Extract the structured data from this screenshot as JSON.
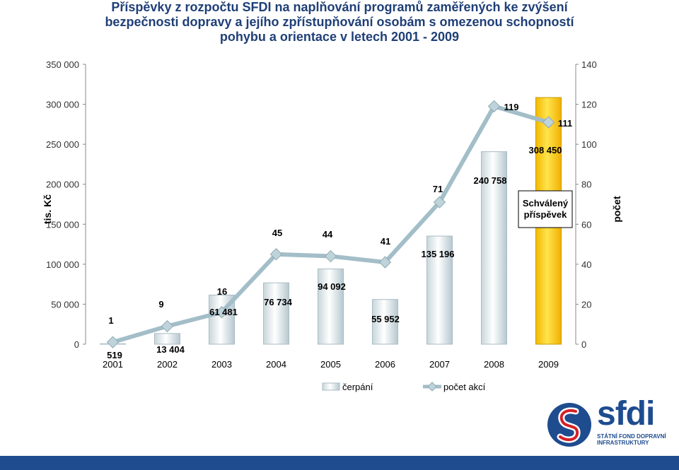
{
  "title_lines": [
    "Příspěvky z rozpočtu SFDI na naplňování programů zaměřených ke zvýšení",
    "bezpečnosti dopravy a jejího zpřístupňování osobám s omezenou schopností",
    "pohybu a orientace v letech 2001 - 2009"
  ],
  "chart_data": {
    "type": "bar+line",
    "categories": [
      "2001",
      "2002",
      "2003",
      "2004",
      "2005",
      "2006",
      "2007",
      "2008",
      "2009"
    ],
    "series": [
      {
        "name": "čerpání",
        "type": "bar",
        "axis": "left",
        "values": [
          519,
          13404,
          61481,
          76734,
          94092,
          55952,
          135196,
          240758,
          308450
        ],
        "labels": [
          "519",
          "13 404",
          "61 481",
          "76 734",
          "94 092",
          "55 952",
          "135 196",
          "240 758",
          "308 450"
        ],
        "highlight_index": 8,
        "highlight_color": "#FFD400"
      },
      {
        "name": "počet akcí",
        "type": "line",
        "axis": "right",
        "values": [
          1,
          9,
          16,
          45,
          44,
          41,
          71,
          119,
          111
        ],
        "labels": [
          "1",
          "9",
          "16",
          "45",
          "44",
          "41",
          "71",
          "119",
          "111"
        ]
      }
    ],
    "ylabel_left": "tis. Kč",
    "ylabel_right": "počet",
    "ylim_left": [
      0,
      350000
    ],
    "ylim_right": [
      0,
      140
    ],
    "left_ticks": [
      "0",
      "50 000",
      "100 000",
      "150 000",
      "200 000",
      "250 000",
      "300 000",
      "350 000"
    ],
    "right_ticks": [
      "0",
      "20",
      "40",
      "60",
      "80",
      "100",
      "120",
      "140"
    ],
    "annotation": "Schválený příspěvek",
    "legend_position": "bottom",
    "colors": {
      "bar": "#E4EDF0",
      "bar_edge": "#A9BCC4",
      "line": "#A3BEC8",
      "marker": "#BFD3DA",
      "text": "#000000"
    }
  },
  "logo": {
    "word": "sfdi",
    "subtitle": "STÁTNÍ FOND DOPRAVNÍ INFRASTRUKTURY"
  }
}
